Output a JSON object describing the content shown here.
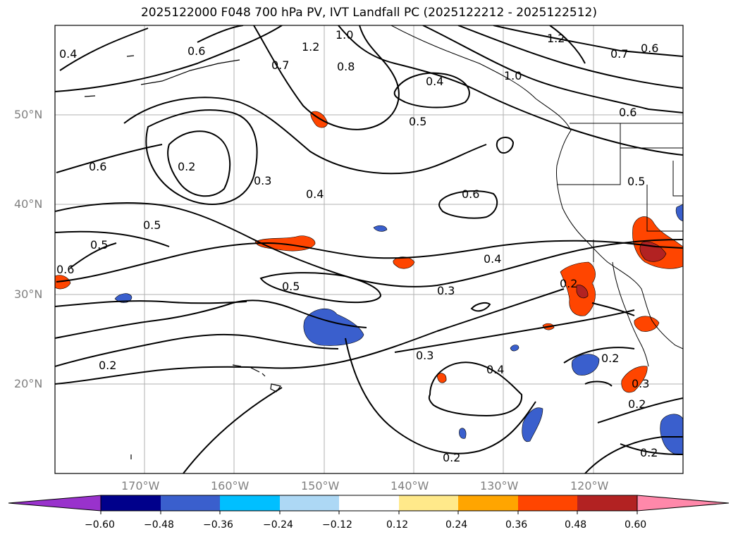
{
  "title": "2025122000 F048 700 hPa PV, IVT Landfall PC (2025122212 - 2025122512)",
  "lat_labels": [
    "50°N",
    "40°N",
    "30°N",
    "20°N"
  ],
  "lon_labels": [
    "170°W",
    "160°W",
    "150°W",
    "140°W",
    "130°W",
    "120°W"
  ],
  "contour_labels": [
    "0.4",
    "0.6",
    "0.7",
    "1.0",
    "1.2",
    "0.8",
    "0.4",
    "1.2",
    "0.7",
    "0.6",
    "1.0",
    "0.6",
    "0.5",
    "0.6",
    "0.2",
    "0.3",
    "0.4",
    "0.6",
    "0.5",
    "0.5",
    "0.5",
    "0.6",
    "0.5",
    "0.4",
    "0.3",
    "0.2",
    "0.2",
    "0.3",
    "0.4",
    "0.2",
    "0.2",
    "0.3",
    "0.2",
    "0.2"
  ],
  "colorbar": {
    "ticks": [
      "−0.60",
      "−0.48",
      "−0.36",
      "−0.24",
      "−0.12",
      "0.12",
      "0.24",
      "0.36",
      "0.48",
      "0.60"
    ],
    "colors": [
      "#9932cc",
      "#00008b",
      "#3a5fcd",
      "#00bfff",
      "#add8f5",
      "#ffffff",
      "#ffe98a",
      "#ffa500",
      "#ff4500",
      "#b22222",
      "#ff88aa"
    ]
  }
}
